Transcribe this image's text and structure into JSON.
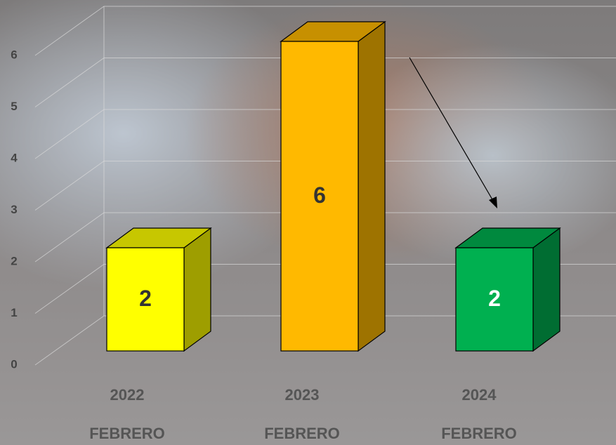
{
  "chart_data": {
    "type": "bar3d",
    "categories": [
      "2022",
      "2023",
      "2024"
    ],
    "category_sublabels": [
      "FEBRERO",
      "FEBRERO",
      "FEBRERO"
    ],
    "values": [
      2,
      6,
      2
    ],
    "colors": [
      "#ffff00",
      "#ffb900",
      "#00b050"
    ],
    "ylim": [
      0,
      6
    ],
    "yticks": [
      0,
      1,
      2,
      3,
      4,
      5,
      6
    ],
    "grid": true
  }
}
